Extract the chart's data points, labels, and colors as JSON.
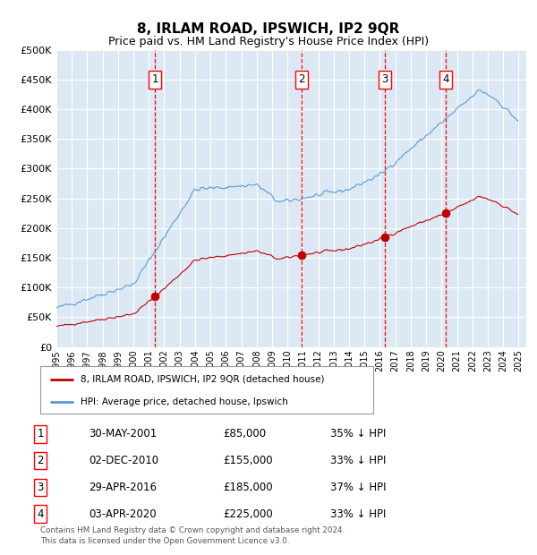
{
  "title": "8, IRLAM ROAD, IPSWICH, IP2 9QR",
  "subtitle": "Price paid vs. HM Land Registry's House Price Index (HPI)",
  "background_color": "#dce9f5",
  "plot_bg_color": "#dce9f5",
  "ylim": [
    0,
    500000
  ],
  "yticks": [
    0,
    50000,
    100000,
    150000,
    200000,
    250000,
    300000,
    350000,
    400000,
    450000,
    500000
  ],
  "ytick_labels": [
    "£0",
    "£50K",
    "£100K",
    "£150K",
    "£200K",
    "£250K",
    "£300K",
    "£350K",
    "£400K",
    "£450K",
    "£500K"
  ],
  "xlim_start": 1995.0,
  "xlim_end": 2025.5,
  "hpi_color": "#5b9bd5",
  "price_color": "#c00000",
  "sale_marker_color": "#c00000",
  "vline_color": "#ff0000",
  "vline_color2": "#aaaacc",
  "purchases": [
    {
      "label": "1",
      "date_num": 2001.41,
      "price": 85000,
      "date_str": "30-MAY-2001",
      "pct": "35% ↓ HPI"
    },
    {
      "label": "2",
      "date_num": 2010.92,
      "price": 155000,
      "date_str": "02-DEC-2010",
      "pct": "33% ↓ HPI"
    },
    {
      "label": "3",
      "date_num": 2016.33,
      "price": 185000,
      "date_str": "29-APR-2016",
      "pct": "37% ↓ HPI"
    },
    {
      "label": "4",
      "date_num": 2020.25,
      "price": 225000,
      "date_str": "03-APR-2020",
      "pct": "33% ↓ HPI"
    }
  ],
  "legend_house_label": "8, IRLAM ROAD, IPSWICH, IP2 9QR (detached house)",
  "legend_hpi_label": "HPI: Average price, detached house, Ipswich",
  "footer": "Contains HM Land Registry data © Crown copyright and database right 2024.\nThis data is licensed under the Open Government Licence v3.0.",
  "table_rows": [
    [
      "1",
      "30-MAY-2001",
      "£85,000",
      "35% ↓ HPI"
    ],
    [
      "2",
      "02-DEC-2010",
      "£155,000",
      "33% ↓ HPI"
    ],
    [
      "3",
      "29-APR-2016",
      "£185,000",
      "37% ↓ HPI"
    ],
    [
      "4",
      "03-APR-2020",
      "£225,000",
      "33% ↓ HPI"
    ]
  ]
}
